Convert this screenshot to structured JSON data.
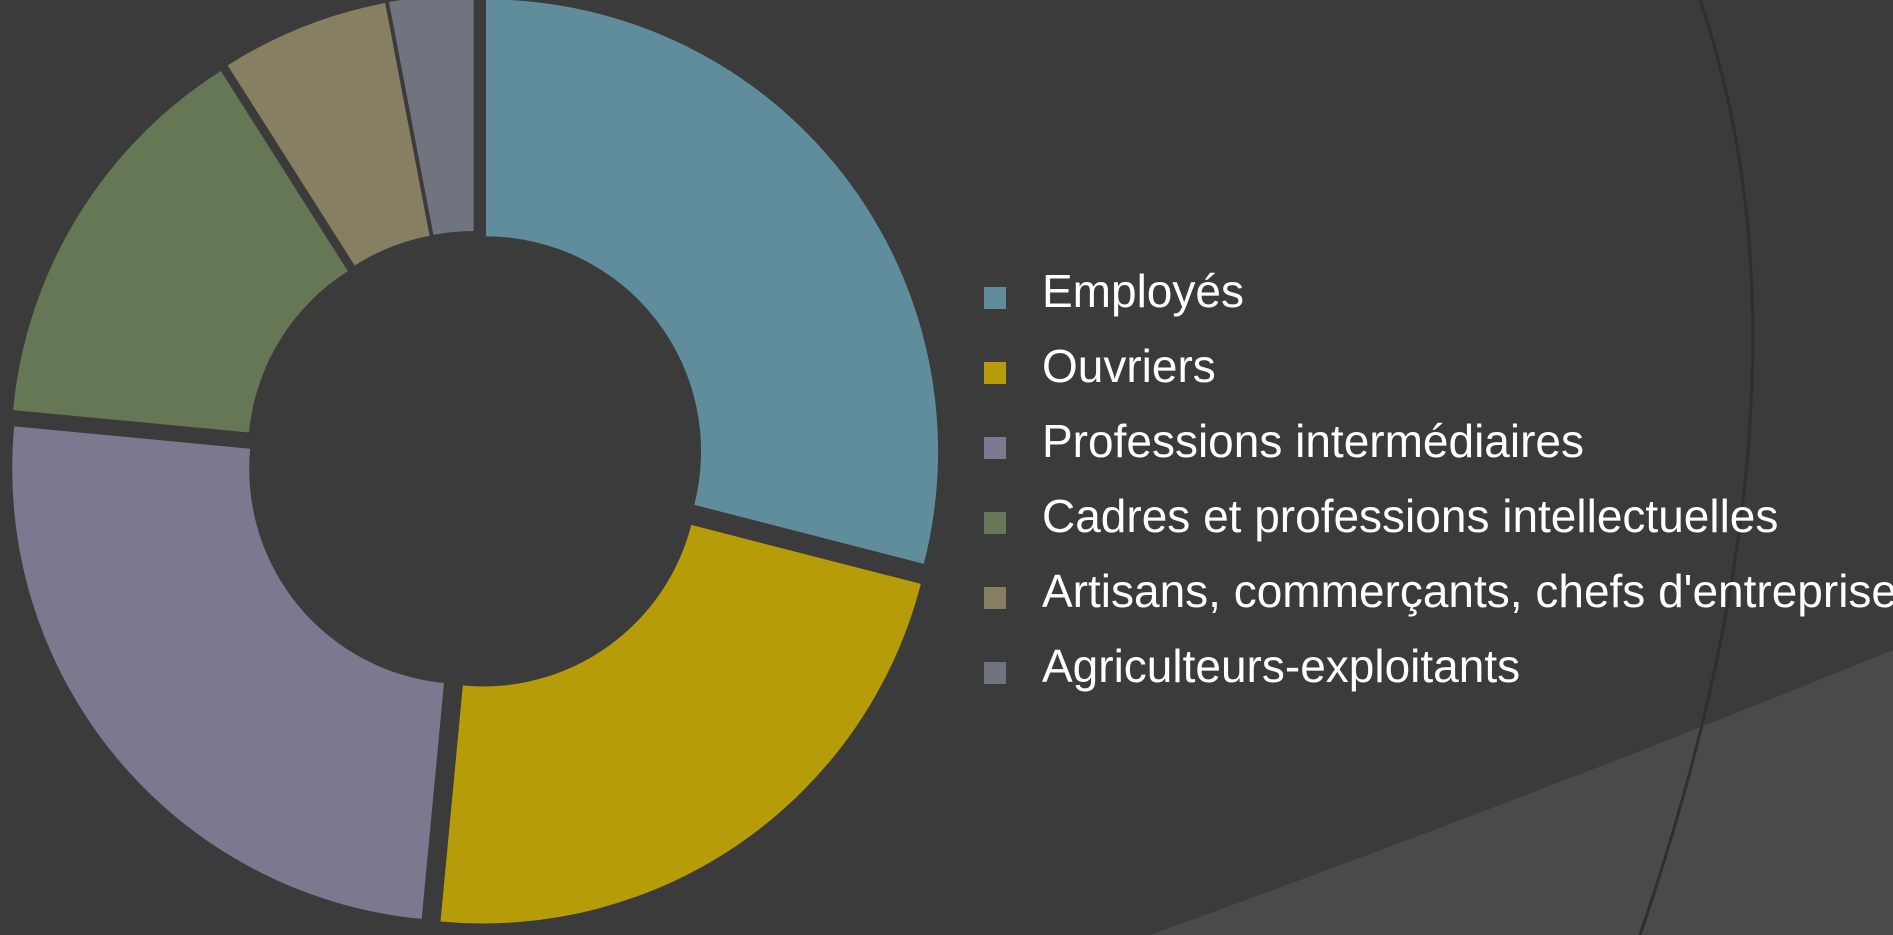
{
  "chart_data": {
    "type": "pie",
    "variant": "donut",
    "title": "",
    "legend_position": "right",
    "slices": [
      {
        "label": "Employés",
        "value": 29.0,
        "color": "#608d9c"
      },
      {
        "label": "Ouvriers",
        "value": 22.5,
        "color": "#b59c08"
      },
      {
        "label": "Professions intermédiaires",
        "value": 25.0,
        "color": "#7b7890"
      },
      {
        "label": "Cadres et professions intellectuelles",
        "value": 14.5,
        "color": "#667755"
      },
      {
        "label": "Artisans, commerçants, chefs d'entreprise",
        "value": 6.0,
        "color": "#877f62"
      },
      {
        "label": "Agriculteurs-exploitants",
        "value": 3.0,
        "color": "#6f747e"
      }
    ]
  },
  "theme": {
    "background": "#3b3b3b",
    "arc_line": "#2f2f2f",
    "corner_fill": "#4a4a4a",
    "text_color": "#ffffff"
  }
}
